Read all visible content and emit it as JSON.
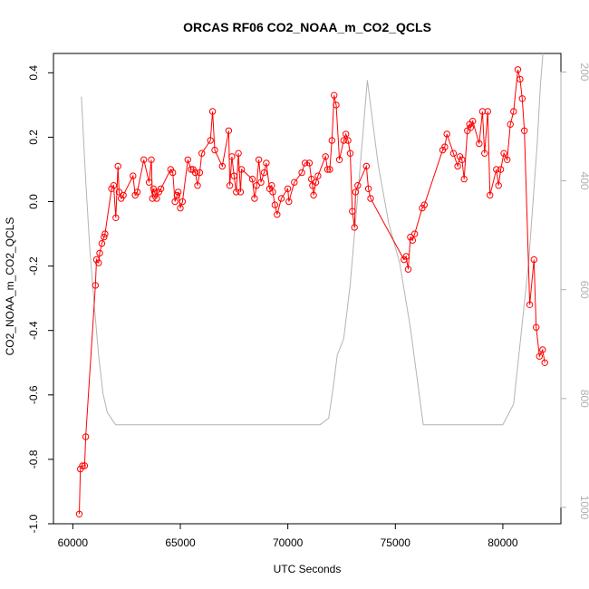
{
  "chart_data": {
    "type": "line",
    "title": "ORCAS RF06 CO2_NOAA_m_CO2_QCLS",
    "xlabel": "UTC Seconds",
    "ylabel": "CO2_NOAA_m_CO2_QCLS",
    "xlim": [
      59100,
      82700
    ],
    "ylim": [
      -1.0,
      0.46
    ],
    "y2lim": [
      1030,
      166
    ],
    "x_ticks": [
      60000,
      65000,
      70000,
      75000,
      80000
    ],
    "x_tick_labels": [
      "60000",
      "65000",
      "70000",
      "75000",
      "80000"
    ],
    "y_ticks": [
      -1.0,
      -0.8,
      -0.6,
      -0.4,
      -0.2,
      0.0,
      0.2,
      0.4
    ],
    "y_tick_labels": [
      "-1.0",
      "-0.8",
      "-0.6",
      "-0.4",
      "-0.2",
      "0.0",
      "0.2",
      "0.4"
    ],
    "y2_ticks": [
      200,
      400,
      600,
      800,
      1000
    ],
    "y2_tick_labels": [
      "200",
      "400",
      "600",
      "800",
      "1000"
    ],
    "grid": false,
    "legend": "none",
    "series": [
      {
        "style": "line-with-open-circles",
        "color": "#ff0000",
        "axis": "left",
        "x": [
          60300,
          60350,
          60450,
          60550,
          60600,
          61050,
          61100,
          61200,
          61250,
          61350,
          61450,
          61500,
          61800,
          61900,
          62000,
          62100,
          62150,
          62250,
          62350,
          62800,
          62900,
          63000,
          63300,
          63550,
          63650,
          63700,
          63750,
          63800,
          63900,
          64000,
          64100,
          64550,
          64650,
          64750,
          64850,
          64900,
          65000,
          65100,
          65350,
          65500,
          65600,
          65700,
          65800,
          65900,
          66000,
          66400,
          66500,
          66600,
          66950,
          67250,
          67300,
          67400,
          67500,
          67600,
          67700,
          67800,
          67850,
          68350,
          68450,
          68550,
          68650,
          68750,
          68900,
          69000,
          69150,
          69250,
          69300,
          69400,
          69500,
          69700,
          70000,
          70050,
          70300,
          70650,
          70800,
          71000,
          71100,
          71150,
          71200,
          71300,
          71400,
          71750,
          71850,
          71950,
          72050,
          72150,
          72250,
          72400,
          72600,
          72700,
          72800,
          72900,
          73000,
          73100,
          73150,
          73250,
          73650,
          73750,
          73850,
          75400,
          75500,
          75600,
          75700,
          75800,
          75900,
          76250,
          76350,
          77200,
          77300,
          77400,
          77700,
          77900,
          78000,
          78100,
          78200,
          78350,
          78450,
          78500,
          78600,
          78900,
          79050,
          79150,
          79300,
          79400,
          79700,
          79800,
          79900,
          80050,
          80200,
          80350,
          80500,
          80700,
          80800,
          80900,
          81000,
          81250,
          81450,
          81550,
          81700,
          81850,
          81950
        ],
        "y": [
          -0.97,
          -0.83,
          -0.82,
          -0.82,
          -0.73,
          -0.26,
          -0.18,
          -0.19,
          -0.16,
          -0.13,
          -0.11,
          -0.1,
          0.04,
          0.05,
          -0.05,
          0.11,
          0.03,
          0.01,
          0.02,
          0.08,
          0.02,
          0.03,
          0.13,
          0.06,
          0.13,
          0.01,
          0.04,
          0.03,
          0.01,
          0.03,
          0.04,
          0.1,
          0.09,
          0.0,
          0.02,
          0.03,
          -0.02,
          0.0,
          0.13,
          0.1,
          0.1,
          0.09,
          0.05,
          0.09,
          0.15,
          0.19,
          0.28,
          0.16,
          0.11,
          0.22,
          0.05,
          0.14,
          0.08,
          0.03,
          0.15,
          0.03,
          0.1,
          0.07,
          0.01,
          0.05,
          0.13,
          0.06,
          0.09,
          0.12,
          0.04,
          0.05,
          0.03,
          -0.01,
          -0.04,
          0.01,
          0.04,
          0.0,
          0.06,
          0.09,
          0.12,
          0.12,
          0.07,
          0.05,
          0.02,
          0.06,
          0.08,
          0.14,
          0.1,
          0.1,
          0.19,
          0.33,
          0.3,
          0.13,
          0.19,
          0.21,
          0.19,
          0.15,
          -0.03,
          -0.08,
          0.03,
          0.05,
          0.11,
          0.04,
          0.01,
          -0.18,
          -0.17,
          -0.21,
          -0.11,
          -0.12,
          -0.1,
          -0.02,
          -0.01,
          0.16,
          0.17,
          0.21,
          0.15,
          0.11,
          0.14,
          0.13,
          0.07,
          0.22,
          0.24,
          0.23,
          0.25,
          0.18,
          0.28,
          0.15,
          0.28,
          0.02,
          0.1,
          0.05,
          0.1,
          0.15,
          0.13,
          0.24,
          0.28,
          0.41,
          0.38,
          0.32,
          0.22,
          -0.32,
          -0.18,
          -0.39,
          -0.48,
          -0.46,
          -0.5
        ]
      },
      {
        "style": "line",
        "color": "#b4b4b4",
        "axis": "right",
        "x": [
          60400,
          60600,
          60800,
          61000,
          61200,
          61400,
          61600,
          61900,
          62000,
          70000,
          71500,
          71900,
          72100,
          72300,
          72600,
          72900,
          73300,
          73700,
          74200,
          74700,
          75200,
          75700,
          76300,
          77000,
          80000,
          80500,
          80800,
          81200,
          81600,
          81750,
          81900,
          82000
        ],
        "y": [
          245,
          400,
          530,
          630,
          720,
          790,
          825,
          843,
          848,
          848,
          848,
          836,
          782,
          720,
          690,
          590,
          405,
          215,
          370,
          480,
          550,
          670,
          848,
          848,
          848,
          810,
          700,
          550,
          330,
          220,
          150,
          120
        ]
      }
    ]
  }
}
